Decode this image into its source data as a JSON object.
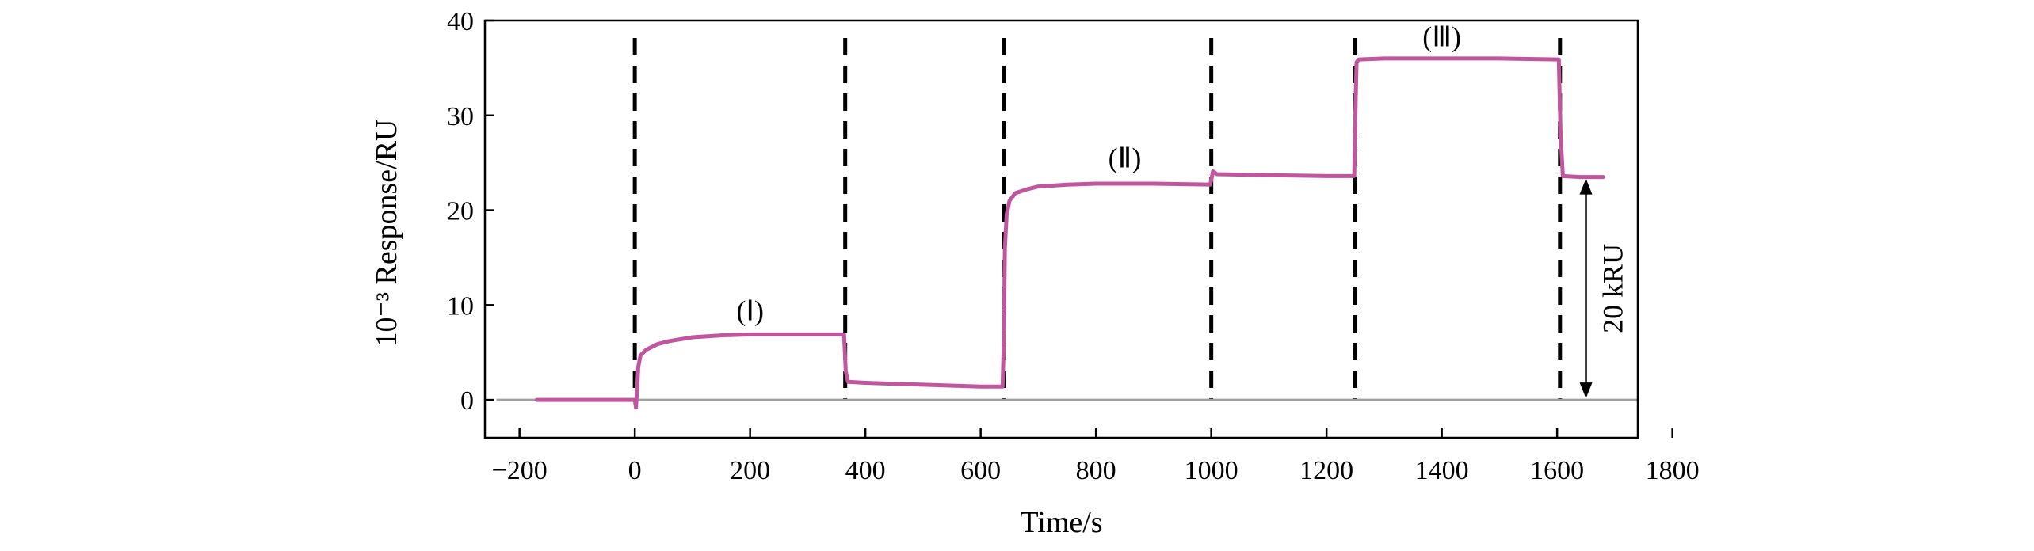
{
  "chart_data": {
    "type": "line",
    "title": "",
    "xlabel": "Time/s",
    "ylabel": "10⁻³ Response/RU",
    "xlim": [
      -260,
      1740
    ],
    "ylim": [
      -4,
      40
    ],
    "xticks": [
      -200,
      0,
      200,
      400,
      600,
      800,
      1000,
      1200,
      1400,
      1600,
      1800
    ],
    "xtick_labels": [
      "−200",
      "0",
      "200",
      "400",
      "600",
      "800",
      "1000",
      "1200",
      "1400",
      "1600",
      "1800"
    ],
    "yticks": [
      0,
      10,
      20,
      30,
      40
    ],
    "ytick_labels": [
      "0",
      "10",
      "20",
      "30",
      "40"
    ],
    "grid": false,
    "legend": "none",
    "colors": {
      "series": "#c0569d",
      "baseline": "#a0a0a0",
      "markers": "#000000"
    },
    "baseline_y": 0,
    "baseline_x_range": [
      -240,
      1740
    ],
    "event_markers_x": [
      0,
      365,
      640,
      1000,
      1250,
      1605
    ],
    "series": [
      {
        "x": [
          -170,
          -100,
          0,
          2,
          4,
          6,
          10,
          20,
          40,
          60,
          100,
          150,
          200,
          300,
          363,
          366,
          370,
          400,
          500,
          600,
          638,
          640,
          642,
          645,
          650,
          660,
          680,
          700,
          750,
          800,
          900,
          998,
          1000,
          1003,
          1010,
          1100,
          1200,
          1248,
          1250,
          1252,
          1256,
          1300,
          1400,
          1500,
          1603,
          1606,
          1610,
          1640,
          1680
        ],
        "y": [
          0,
          0,
          0,
          -0.8,
          1.2,
          3.5,
          4.7,
          5.3,
          5.9,
          6.2,
          6.6,
          6.8,
          6.9,
          6.9,
          6.9,
          3,
          1.9,
          1.8,
          1.6,
          1.4,
          1.4,
          6,
          16,
          19.5,
          21,
          21.8,
          22.2,
          22.5,
          22.7,
          22.8,
          22.8,
          22.7,
          23.2,
          24.1,
          23.8,
          23.7,
          23.6,
          23.6,
          30,
          35.6,
          35.9,
          36,
          36,
          36,
          35.9,
          28,
          23.6,
          23.5,
          23.5
        ]
      }
    ],
    "annotations": [
      {
        "text": "(Ⅰ)",
        "x": 200,
        "y": 8.4
      },
      {
        "text": "(Ⅱ)",
        "x": 850,
        "y": 24.5
      },
      {
        "text": "(Ⅲ)",
        "x": 1400,
        "y": 37.3
      }
    ],
    "scale_bar": {
      "label": "20 kRU",
      "x": 1650,
      "y_from": 0,
      "y_to": 23.5
    }
  }
}
